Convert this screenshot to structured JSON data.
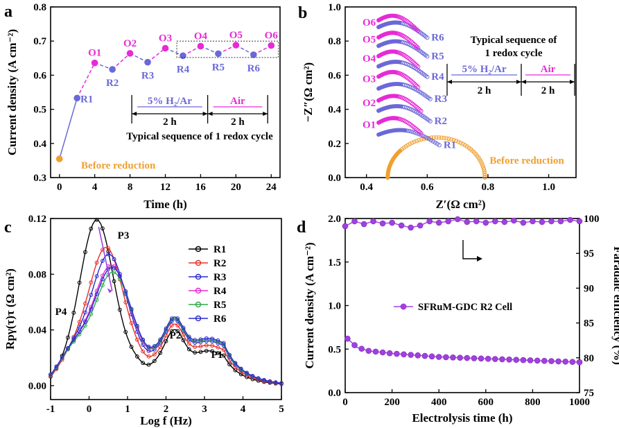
{
  "colors": {
    "pink": "#e62ad6",
    "blue": "#6b68d8",
    "orange": "#f0a030",
    "black": "#000000",
    "red": "#e8302a",
    "darkblue": "#2b2bd0",
    "green": "#2ea84a",
    "purple": "#a040e0"
  },
  "chart_data": [
    {
      "panel": "a",
      "type": "line",
      "xlabel": "Time (h)",
      "ylabel": "Current density (A cm⁻²)",
      "xlim": [
        -1,
        25
      ],
      "ylim": [
        0.3,
        0.8
      ],
      "xticks": [
        "0",
        "4",
        "8",
        "12",
        "16",
        "20",
        "24"
      ],
      "yticks": [
        "0.3",
        "0.4",
        "0.5",
        "0.6",
        "0.7",
        "0.8"
      ],
      "points": [
        {
          "x": 0,
          "y": 0.355,
          "label": "Before reduction",
          "kind": "before"
        },
        {
          "x": 2,
          "y": 0.533,
          "label": "R1",
          "kind": "R"
        },
        {
          "x": 4,
          "y": 0.636,
          "label": "O1",
          "kind": "O"
        },
        {
          "x": 6,
          "y": 0.617,
          "label": "R2",
          "kind": "R"
        },
        {
          "x": 8,
          "y": 0.664,
          "label": "O2",
          "kind": "O"
        },
        {
          "x": 10,
          "y": 0.638,
          "label": "R3",
          "kind": "R"
        },
        {
          "x": 12,
          "y": 0.679,
          "label": "O3",
          "kind": "O"
        },
        {
          "x": 14,
          "y": 0.657,
          "label": "R4",
          "kind": "R"
        },
        {
          "x": 16,
          "y": 0.685,
          "label": "O4",
          "kind": "O"
        },
        {
          "x": 18,
          "y": 0.663,
          "label": "R5",
          "kind": "R"
        },
        {
          "x": 20,
          "y": 0.688,
          "label": "O5",
          "kind": "O"
        },
        {
          "x": 22,
          "y": 0.66,
          "label": "R6",
          "kind": "R"
        },
        {
          "x": 24,
          "y": 0.687,
          "label": "O6",
          "kind": "O"
        }
      ],
      "annotation": {
        "gas1": "5% H₂/Ar",
        "gas2": "Air",
        "duration1": "2 h",
        "duration2": "2 h",
        "caption": "Typical sequence of 1 redox cycle"
      }
    },
    {
      "panel": "b",
      "type": "scatter",
      "xlabel": "Z′(Ω cm²)",
      "ylabel": "−Z″(Ω cm²)",
      "xlim": [
        0.33,
        1.09
      ],
      "ylim": [
        0,
        1.0
      ],
      "xticks": [
        "0.4",
        "0.6",
        "0.8",
        "1.0"
      ],
      "yticks": [
        "0.0",
        "0.2",
        "0.4",
        "0.6",
        "0.8",
        "1.0"
      ],
      "before": {
        "label": "Before reduction",
        "x_start": 0.47,
        "x_end": 0.79,
        "peak": 0.235
      },
      "arcs": [
        {
          "label": "R1",
          "kind": "R",
          "x_start": 0.44,
          "x_end": 0.64,
          "offset": 0.22
        },
        {
          "label": "O1",
          "kind": "O",
          "x_start": 0.44,
          "x_end": 0.58,
          "offset": 0.29
        },
        {
          "label": "R2",
          "kind": "R",
          "x_start": 0.44,
          "x_end": 0.61,
          "offset": 0.36
        },
        {
          "label": "O2",
          "kind": "O",
          "x_start": 0.44,
          "x_end": 0.58,
          "offset": 0.42
        },
        {
          "label": "R3",
          "kind": "R",
          "x_start": 0.44,
          "x_end": 0.61,
          "offset": 0.49
        },
        {
          "label": "O3",
          "kind": "O",
          "x_start": 0.44,
          "x_end": 0.57,
          "offset": 0.56
        },
        {
          "label": "R4",
          "kind": "R",
          "x_start": 0.44,
          "x_end": 0.6,
          "offset": 0.62
        },
        {
          "label": "O4",
          "kind": "O",
          "x_start": 0.44,
          "x_end": 0.57,
          "offset": 0.68
        },
        {
          "label": "R5",
          "kind": "R",
          "x_start": 0.44,
          "x_end": 0.6,
          "offset": 0.74
        },
        {
          "label": "O5",
          "kind": "O",
          "x_start": 0.44,
          "x_end": 0.57,
          "offset": 0.79
        },
        {
          "label": "R6",
          "kind": "R",
          "x_start": 0.44,
          "x_end": 0.6,
          "offset": 0.85
        },
        {
          "label": "O6",
          "kind": "O",
          "x_start": 0.44,
          "x_end": 0.57,
          "offset": 0.89
        }
      ],
      "annotation": {
        "caption_line1": "Typical sequence of",
        "caption_line2": "1 redox cycle",
        "gas1": "5% H₂/Ar",
        "gas2": "Air",
        "duration1": "2 h",
        "duration2": "2 h"
      }
    },
    {
      "panel": "c",
      "type": "line",
      "xlabel": "Log f (Hz)",
      "ylabel": "Rpγ(τ)τ (Ω cm²)",
      "xlim": [
        -1,
        5
      ],
      "ylim": [
        -0.01,
        0.12
      ],
      "xticks": [
        "-1",
        "0",
        "1",
        "2",
        "3",
        "4",
        "5"
      ],
      "yticks": [
        "0.00",
        "0.04",
        "0.08",
        "0.12"
      ],
      "peaks": [
        "P4",
        "P3",
        "P2",
        "P1"
      ],
      "series": [
        {
          "name": "R1",
          "color": "#000000",
          "base": 0.018,
          "p3": {
            "c": 0.2,
            "h": 0.112
          }
        },
        {
          "name": "R2",
          "color": "#e8302a",
          "base": 0.022,
          "p3": {
            "c": 0.45,
            "h": 0.09
          }
        },
        {
          "name": "R3",
          "color": "#2b2bd0",
          "base": 0.025,
          "p3": {
            "c": 0.52,
            "h": 0.084
          }
        },
        {
          "name": "R4",
          "color": "#e62ad6",
          "base": 0.026,
          "p3": {
            "c": 0.58,
            "h": 0.076
          }
        },
        {
          "name": "R5",
          "color": "#2ea84a",
          "base": 0.026,
          "p3": {
            "c": 0.62,
            "h": 0.071
          }
        },
        {
          "name": "R6",
          "color": "#2b2bd0",
          "base": 0.027,
          "p3": {
            "c": 0.6,
            "h": 0.074
          }
        }
      ]
    },
    {
      "panel": "d",
      "type": "line",
      "xlabel": "Electrolysis time (h)",
      "ylabel": "Current density (A cm⁻²)",
      "y2label": "Faradaic efficiency (%)",
      "xlim": [
        0,
        1000
      ],
      "ylim": [
        0,
        2.0
      ],
      "y2lim": [
        75,
        100
      ],
      "xticks": [
        "0",
        "200",
        "400",
        "600",
        "800",
        "1000"
      ],
      "yticks": [
        "0.0",
        "0.5",
        "1.0",
        "1.5",
        "2.0"
      ],
      "y2ticks": [
        "75",
        "80",
        "85",
        "90",
        "95",
        "100"
      ],
      "legend": "SFRuM-GDC R2 Cell",
      "current_density": [
        {
          "x": 10,
          "y": 0.62
        },
        {
          "x": 50,
          "y": 0.52
        },
        {
          "x": 100,
          "y": 0.48
        },
        {
          "x": 200,
          "y": 0.45
        },
        {
          "x": 300,
          "y": 0.43
        },
        {
          "x": 400,
          "y": 0.41
        },
        {
          "x": 500,
          "y": 0.4
        },
        {
          "x": 600,
          "y": 0.39
        },
        {
          "x": 700,
          "y": 0.38
        },
        {
          "x": 800,
          "y": 0.37
        },
        {
          "x": 900,
          "y": 0.36
        },
        {
          "x": 1000,
          "y": 0.35
        }
      ],
      "faradaic_efficiency": [
        {
          "x": 0,
          "y": 98.9
        },
        {
          "x": 40,
          "y": 99.6
        },
        {
          "x": 80,
          "y": 99.2
        },
        {
          "x": 120,
          "y": 99.6
        },
        {
          "x": 160,
          "y": 99.3
        },
        {
          "x": 200,
          "y": 99.4
        },
        {
          "x": 240,
          "y": 99.0
        },
        {
          "x": 280,
          "y": 98.7
        },
        {
          "x": 320,
          "y": 99.0
        },
        {
          "x": 360,
          "y": 99.6
        },
        {
          "x": 400,
          "y": 99.4
        },
        {
          "x": 440,
          "y": 99.6
        },
        {
          "x": 480,
          "y": 99.9
        },
        {
          "x": 520,
          "y": 99.5
        },
        {
          "x": 560,
          "y": 99.6
        },
        {
          "x": 600,
          "y": 99.4
        },
        {
          "x": 640,
          "y": 99.6
        },
        {
          "x": 680,
          "y": 99.5
        },
        {
          "x": 720,
          "y": 99.7
        },
        {
          "x": 760,
          "y": 99.4
        },
        {
          "x": 800,
          "y": 99.6
        },
        {
          "x": 840,
          "y": 99.5
        },
        {
          "x": 880,
          "y": 99.6
        },
        {
          "x": 920,
          "y": 99.6
        },
        {
          "x": 960,
          "y": 99.8
        },
        {
          "x": 1000,
          "y": 99.6
        }
      ]
    }
  ],
  "panels": {
    "a": "a",
    "b": "b",
    "c": "c",
    "d": "d"
  }
}
